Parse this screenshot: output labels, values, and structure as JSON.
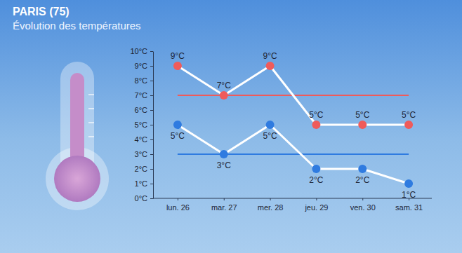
{
  "chart_data": {
    "type": "line",
    "title": "PARIS (75)",
    "subtitle": "Évolution des températures",
    "categories": [
      "lun. 26",
      "mar. 27",
      "mer. 28",
      "jeu. 29",
      "ven. 30",
      "sam. 31"
    ],
    "series": [
      {
        "color": "#ef5b5b",
        "marker": "circle",
        "values": [
          9,
          7,
          9,
          5,
          5,
          5
        ],
        "value_labels": [
          "9°C",
          "7°C",
          "9°C",
          "5°C",
          "5°C",
          "5°C"
        ],
        "reference": 7
      },
      {
        "color": "#2f7be0",
        "marker": "circle",
        "values": [
          5,
          3,
          5,
          2,
          2,
          1
        ],
        "value_labels": [
          "5°C",
          "3°C",
          "5°C",
          "2°C",
          "2°C",
          "1°C"
        ],
        "reference": 3
      }
    ],
    "ylim": [
      0,
      10
    ],
    "yticks": [
      {
        "value": 0,
        "label": "0°C"
      },
      {
        "value": 1,
        "label": "1°C"
      },
      {
        "value": 2,
        "label": "2°C"
      },
      {
        "value": 3,
        "label": "3°C"
      },
      {
        "value": 4,
        "label": "4°C"
      },
      {
        "value": 5,
        "label": "5°C"
      },
      {
        "value": 6,
        "label": "6°C"
      },
      {
        "value": 7,
        "label": "7°C"
      },
      {
        "value": 8,
        "label": "8°C"
      },
      {
        "value": 9,
        "label": "9°C"
      },
      {
        "value": 10,
        "label": "10°C"
      }
    ],
    "grid": false,
    "data_labels": true
  }
}
